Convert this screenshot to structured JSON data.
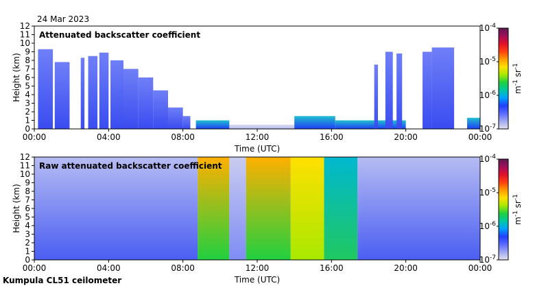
{
  "date": "24 Mar 2023",
  "footer": "Kumpula CL51 ceilometer",
  "colorbar": {
    "unit_base": "m",
    "unit_exp1": "-1",
    "unit_mid": "sr",
    "unit_exp2": "-1",
    "ticks": [
      {
        "base": "10",
        "exp": "-4",
        "value": -4
      },
      {
        "base": "10",
        "exp": "-5",
        "value": -5
      },
      {
        "base": "10",
        "exp": "-6",
        "value": -6
      },
      {
        "base": "10",
        "exp": "-7",
        "value": -7
      }
    ],
    "colors": [
      "#5a1a50",
      "#a0105a",
      "#e0102a",
      "#ff4010",
      "#ff9a00",
      "#ffe000",
      "#a8e800",
      "#20d040",
      "#00c8a0",
      "#00a0ff",
      "#2040ff",
      "#5a6aff",
      "#a0a8f0",
      "#e0e0f0"
    ]
  },
  "chart_data": [
    {
      "type": "heatmap",
      "title": "Attenuated backscatter coefficient",
      "xlabel": "Time (UTC)",
      "ylabel": "Height (km)",
      "xlim": [
        0,
        24
      ],
      "ylim": [
        0,
        12
      ],
      "x_ticks": [
        "00:00",
        "04:00",
        "08:00",
        "12:00",
        "16:00",
        "20:00",
        "00:00"
      ],
      "y_ticks": [
        "0",
        "1",
        "2",
        "3",
        "4",
        "5",
        "6",
        "7",
        "8",
        "9",
        "10",
        "11",
        "12"
      ],
      "colorbar_range_log10": [
        -7,
        -4
      ],
      "bands": [
        {
          "x0": 0.2,
          "x1": 1.0,
          "top": 9.3,
          "level": "medium"
        },
        {
          "x0": 1.1,
          "x1": 1.9,
          "top": 7.8,
          "level": "medium"
        },
        {
          "x0": 2.5,
          "x1": 2.7,
          "top": 8.3,
          "level": "medium"
        },
        {
          "x0": 2.9,
          "x1": 3.4,
          "top": 8.5,
          "level": "medium"
        },
        {
          "x0": 3.5,
          "x1": 4.0,
          "top": 8.9,
          "level": "medium"
        },
        {
          "x0": 4.1,
          "x1": 4.8,
          "top": 8.0,
          "level": "medium"
        },
        {
          "x0": 4.8,
          "x1": 5.6,
          "top": 7.0,
          "level": "medium"
        },
        {
          "x0": 5.6,
          "x1": 6.4,
          "top": 6.0,
          "level": "medium"
        },
        {
          "x0": 6.4,
          "x1": 7.2,
          "top": 4.5,
          "level": "medium"
        },
        {
          "x0": 7.2,
          "x1": 8.0,
          "top": 2.5,
          "level": "medium"
        },
        {
          "x0": 8.0,
          "x1": 8.4,
          "top": 1.5,
          "level": "medium"
        },
        {
          "x0": 8.7,
          "x1": 10.5,
          "top": 1.0,
          "level": "high"
        },
        {
          "x0": 10.5,
          "x1": 14.0,
          "top": 0.5,
          "level": "low"
        },
        {
          "x0": 14.0,
          "x1": 16.2,
          "top": 1.5,
          "level": "high"
        },
        {
          "x0": 16.2,
          "x1": 20.0,
          "top": 1.0,
          "level": "high"
        },
        {
          "x0": 18.3,
          "x1": 18.5,
          "top": 7.5,
          "level": "medium"
        },
        {
          "x0": 18.9,
          "x1": 19.3,
          "top": 9.0,
          "level": "medium"
        },
        {
          "x0": 19.5,
          "x1": 19.8,
          "top": 8.8,
          "level": "medium"
        },
        {
          "x0": 20.9,
          "x1": 21.4,
          "top": 9.0,
          "level": "medium"
        },
        {
          "x0": 21.4,
          "x1": 22.6,
          "top": 9.5,
          "level": "medium"
        },
        {
          "x0": 23.3,
          "x1": 24.0,
          "top": 1.3,
          "level": "high"
        }
      ]
    },
    {
      "type": "heatmap",
      "title": "Raw attenuated backscatter coefficient",
      "xlabel": "Time (UTC)",
      "ylabel": "Height (km)",
      "xlim": [
        0,
        24
      ],
      "ylim": [
        0,
        12
      ],
      "x_ticks": [
        "00:00",
        "04:00",
        "08:00",
        "12:00",
        "16:00",
        "20:00",
        "00:00"
      ],
      "y_ticks": [
        "0",
        "1",
        "2",
        "3",
        "4",
        "5",
        "6",
        "7",
        "8",
        "9",
        "10",
        "11",
        "12"
      ],
      "colorbar_range_log10": [
        -7,
        -4
      ],
      "bands": [
        {
          "x0": 0.0,
          "x1": 8.8,
          "top": 12,
          "level": "noise-medium"
        },
        {
          "x0": 8.8,
          "x1": 10.5,
          "top": 12,
          "level": "noise-high"
        },
        {
          "x0": 10.5,
          "x1": 11.4,
          "top": 12,
          "level": "noise-low"
        },
        {
          "x0": 11.4,
          "x1": 13.8,
          "top": 12,
          "level": "noise-high"
        },
        {
          "x0": 13.8,
          "x1": 15.6,
          "top": 12,
          "level": "noise-veryhigh"
        },
        {
          "x0": 15.6,
          "x1": 17.4,
          "top": 12,
          "level": "noise-green"
        },
        {
          "x0": 17.4,
          "x1": 24.0,
          "top": 12,
          "level": "noise-medium"
        }
      ]
    }
  ]
}
